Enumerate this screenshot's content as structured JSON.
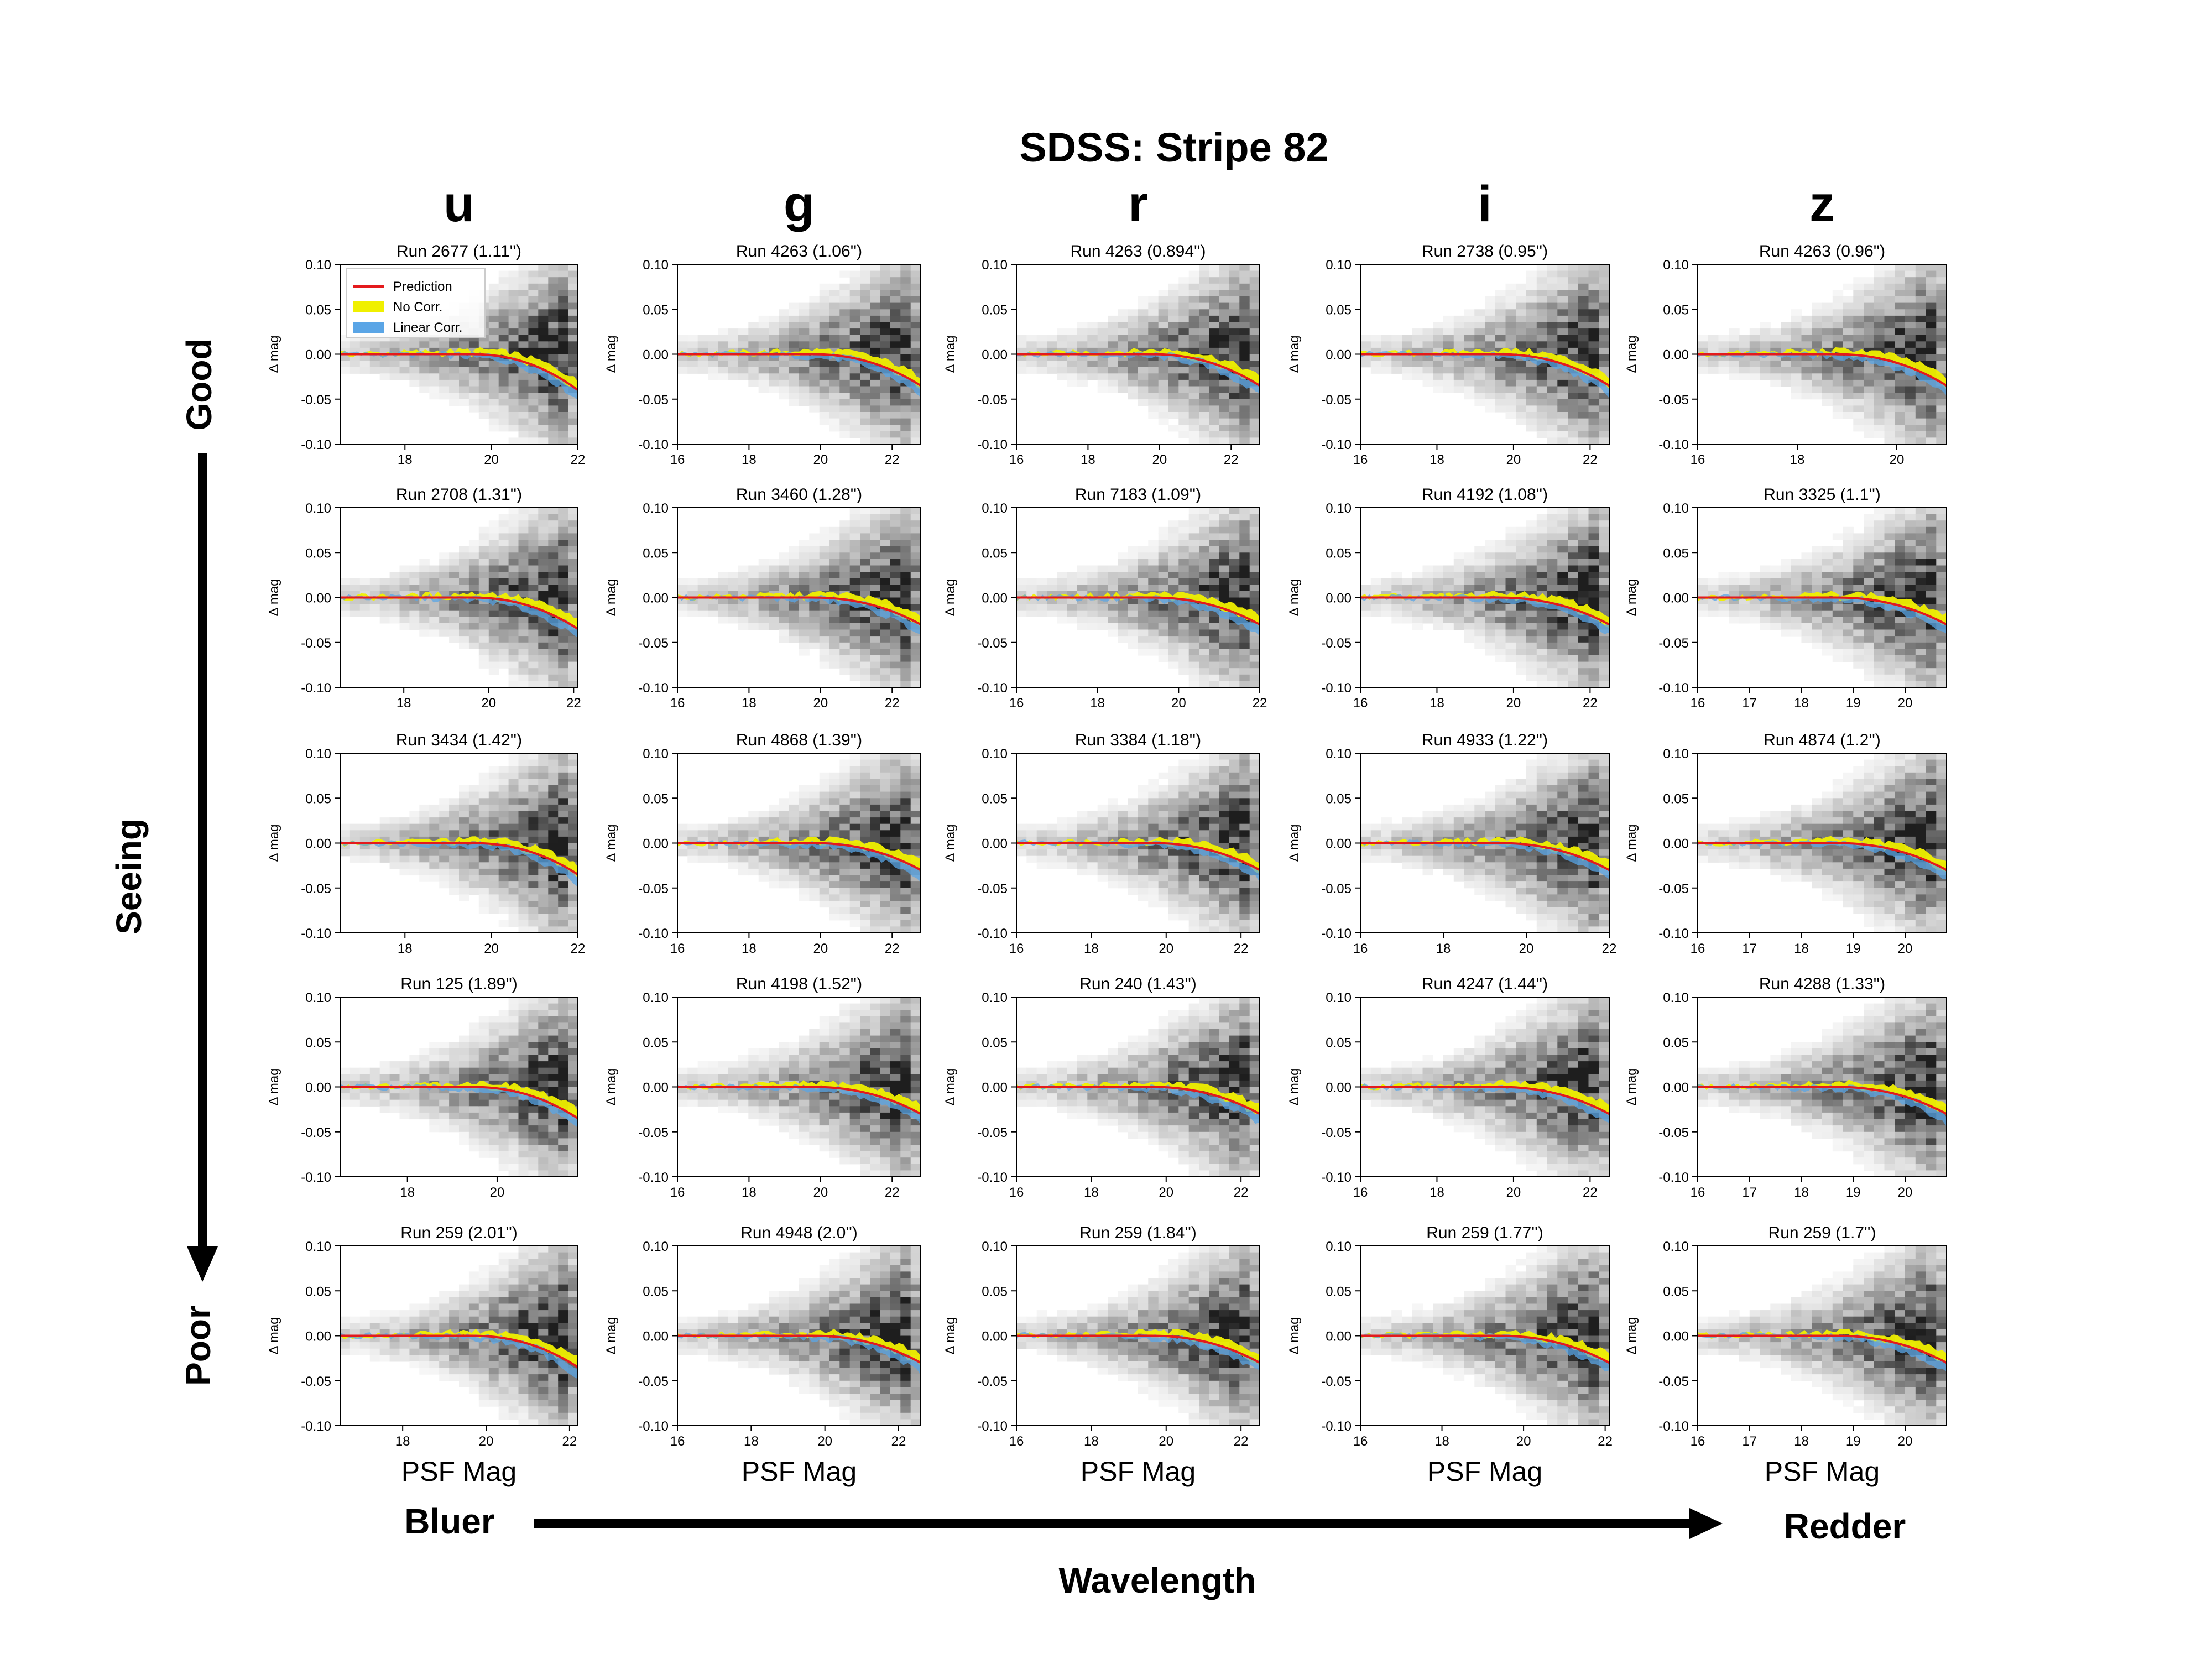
{
  "figure": {
    "title": "SDSS: Stripe 82",
    "wavelength_label": "Wavelength",
    "bluer_label": "Bluer",
    "redder_label": "Redder",
    "seeing_label": "Seeing",
    "good_label": "Good",
    "poor_label": "Poor",
    "psf_label": "PSF Mag",
    "bands": [
      "u",
      "g",
      "r",
      "i",
      "z"
    ],
    "legend_entries": [
      "Prediction",
      "No Corr.",
      "Linear Corr."
    ],
    "colors": {
      "prediction": "#e41a1c",
      "no_corr": "#f0f000",
      "linear_corr": "#5aa5e6",
      "overlap": "#5db38a"
    }
  },
  "chart_data": {
    "type": "grid-of-panels",
    "ylabel": "Δ mag",
    "ylim": [
      -0.1,
      0.1
    ],
    "yticks": [
      "0.10",
      "0.05",
      "0.00",
      "-0.05",
      "-0.10"
    ],
    "legend": [
      "Prediction",
      "No Corr.",
      "Linear Corr."
    ],
    "legend_placement": "top-left of first panel",
    "rows": [
      [
        {
          "title": "Run 2677 (1.11'')",
          "xlim": [
            16.5,
            22
          ],
          "xticks": [
            18,
            20,
            22
          ]
        },
        {
          "title": "Run 4263 (1.06'')",
          "xlim": [
            16,
            22.8
          ],
          "xticks": [
            16,
            18,
            20,
            22
          ]
        },
        {
          "title": "Run 4263 (0.894'')",
          "xlim": [
            16,
            22.8
          ],
          "xticks": [
            16,
            18,
            20,
            22
          ]
        },
        {
          "title": "Run 2738 (0.95'')",
          "xlim": [
            16,
            22.5
          ],
          "xticks": [
            16,
            18,
            20,
            22
          ]
        },
        {
          "title": "Run 4263 (0.96'')",
          "xlim": [
            16,
            21
          ],
          "xticks": [
            16,
            18,
            20
          ]
        }
      ],
      [
        {
          "title": "Run 2708 (1.31'')",
          "xlim": [
            16.5,
            22.1
          ],
          "xticks": [
            18,
            20,
            22
          ]
        },
        {
          "title": "Run 3460 (1.28'')",
          "xlim": [
            16,
            22.8
          ],
          "xticks": [
            16,
            18,
            20,
            22
          ]
        },
        {
          "title": "Run 7183 (1.09'')",
          "xlim": [
            16,
            22
          ],
          "xticks": [
            16,
            18,
            20,
            22
          ]
        },
        {
          "title": "Run 4192 (1.08'')",
          "xlim": [
            16,
            22.5
          ],
          "xticks": [
            16,
            18,
            20,
            22
          ]
        },
        {
          "title": "Run 3325 (1.1'')",
          "xlim": [
            16,
            20.8
          ],
          "xticks": [
            16,
            17,
            18,
            19,
            20
          ]
        }
      ],
      [
        {
          "title": "Run 3434 (1.42'')",
          "xlim": [
            16.5,
            22
          ],
          "xticks": [
            18,
            20,
            22
          ]
        },
        {
          "title": "Run 4868 (1.39'')",
          "xlim": [
            16,
            22.8
          ],
          "xticks": [
            16,
            18,
            20,
            22
          ]
        },
        {
          "title": "Run 3384 (1.18'')",
          "xlim": [
            16,
            22.5
          ],
          "xticks": [
            16,
            18,
            20,
            22
          ]
        },
        {
          "title": "Run 4933 (1.22'')",
          "xlim": [
            16,
            22
          ],
          "xticks": [
            16,
            18,
            20,
            22
          ]
        },
        {
          "title": "Run 4874 (1.2'')",
          "xlim": [
            16,
            20.8
          ],
          "xticks": [
            16,
            17,
            18,
            19,
            20
          ]
        }
      ],
      [
        {
          "title": "Run 125 (1.89'')",
          "xlim": [
            16.5,
            21.8
          ],
          "xticks": [
            18,
            20
          ]
        },
        {
          "title": "Run 4198 (1.52'')",
          "xlim": [
            16,
            22.8
          ],
          "xticks": [
            16,
            18,
            20,
            22
          ]
        },
        {
          "title": "Run 240 (1.43'')",
          "xlim": [
            16,
            22.5
          ],
          "xticks": [
            16,
            18,
            20,
            22
          ]
        },
        {
          "title": "Run 4247 (1.44'')",
          "xlim": [
            16,
            22.5
          ],
          "xticks": [
            16,
            18,
            20,
            22
          ]
        },
        {
          "title": "Run 4288 (1.33'')",
          "xlim": [
            16,
            20.8
          ],
          "xticks": [
            16,
            17,
            18,
            19,
            20
          ]
        }
      ],
      [
        {
          "title": "Run 259 (2.01'')",
          "xlim": [
            16.5,
            22.2
          ],
          "xticks": [
            18,
            20,
            22
          ]
        },
        {
          "title": "Run 4948 (2.0'')",
          "xlim": [
            16,
            22.6
          ],
          "xticks": [
            16,
            18,
            20,
            22
          ]
        },
        {
          "title": "Run 259 (1.84'')",
          "xlim": [
            16,
            22.5
          ],
          "xticks": [
            16,
            18,
            20,
            22
          ]
        },
        {
          "title": "Run 259 (1.77'')",
          "xlim": [
            16,
            22.1
          ],
          "xticks": [
            16,
            18,
            20,
            22
          ]
        },
        {
          "title": "Run 259 (1.7'')",
          "xlim": [
            16,
            20.8
          ],
          "xticks": [
            16,
            17,
            18,
            19,
            20
          ]
        }
      ]
    ]
  }
}
